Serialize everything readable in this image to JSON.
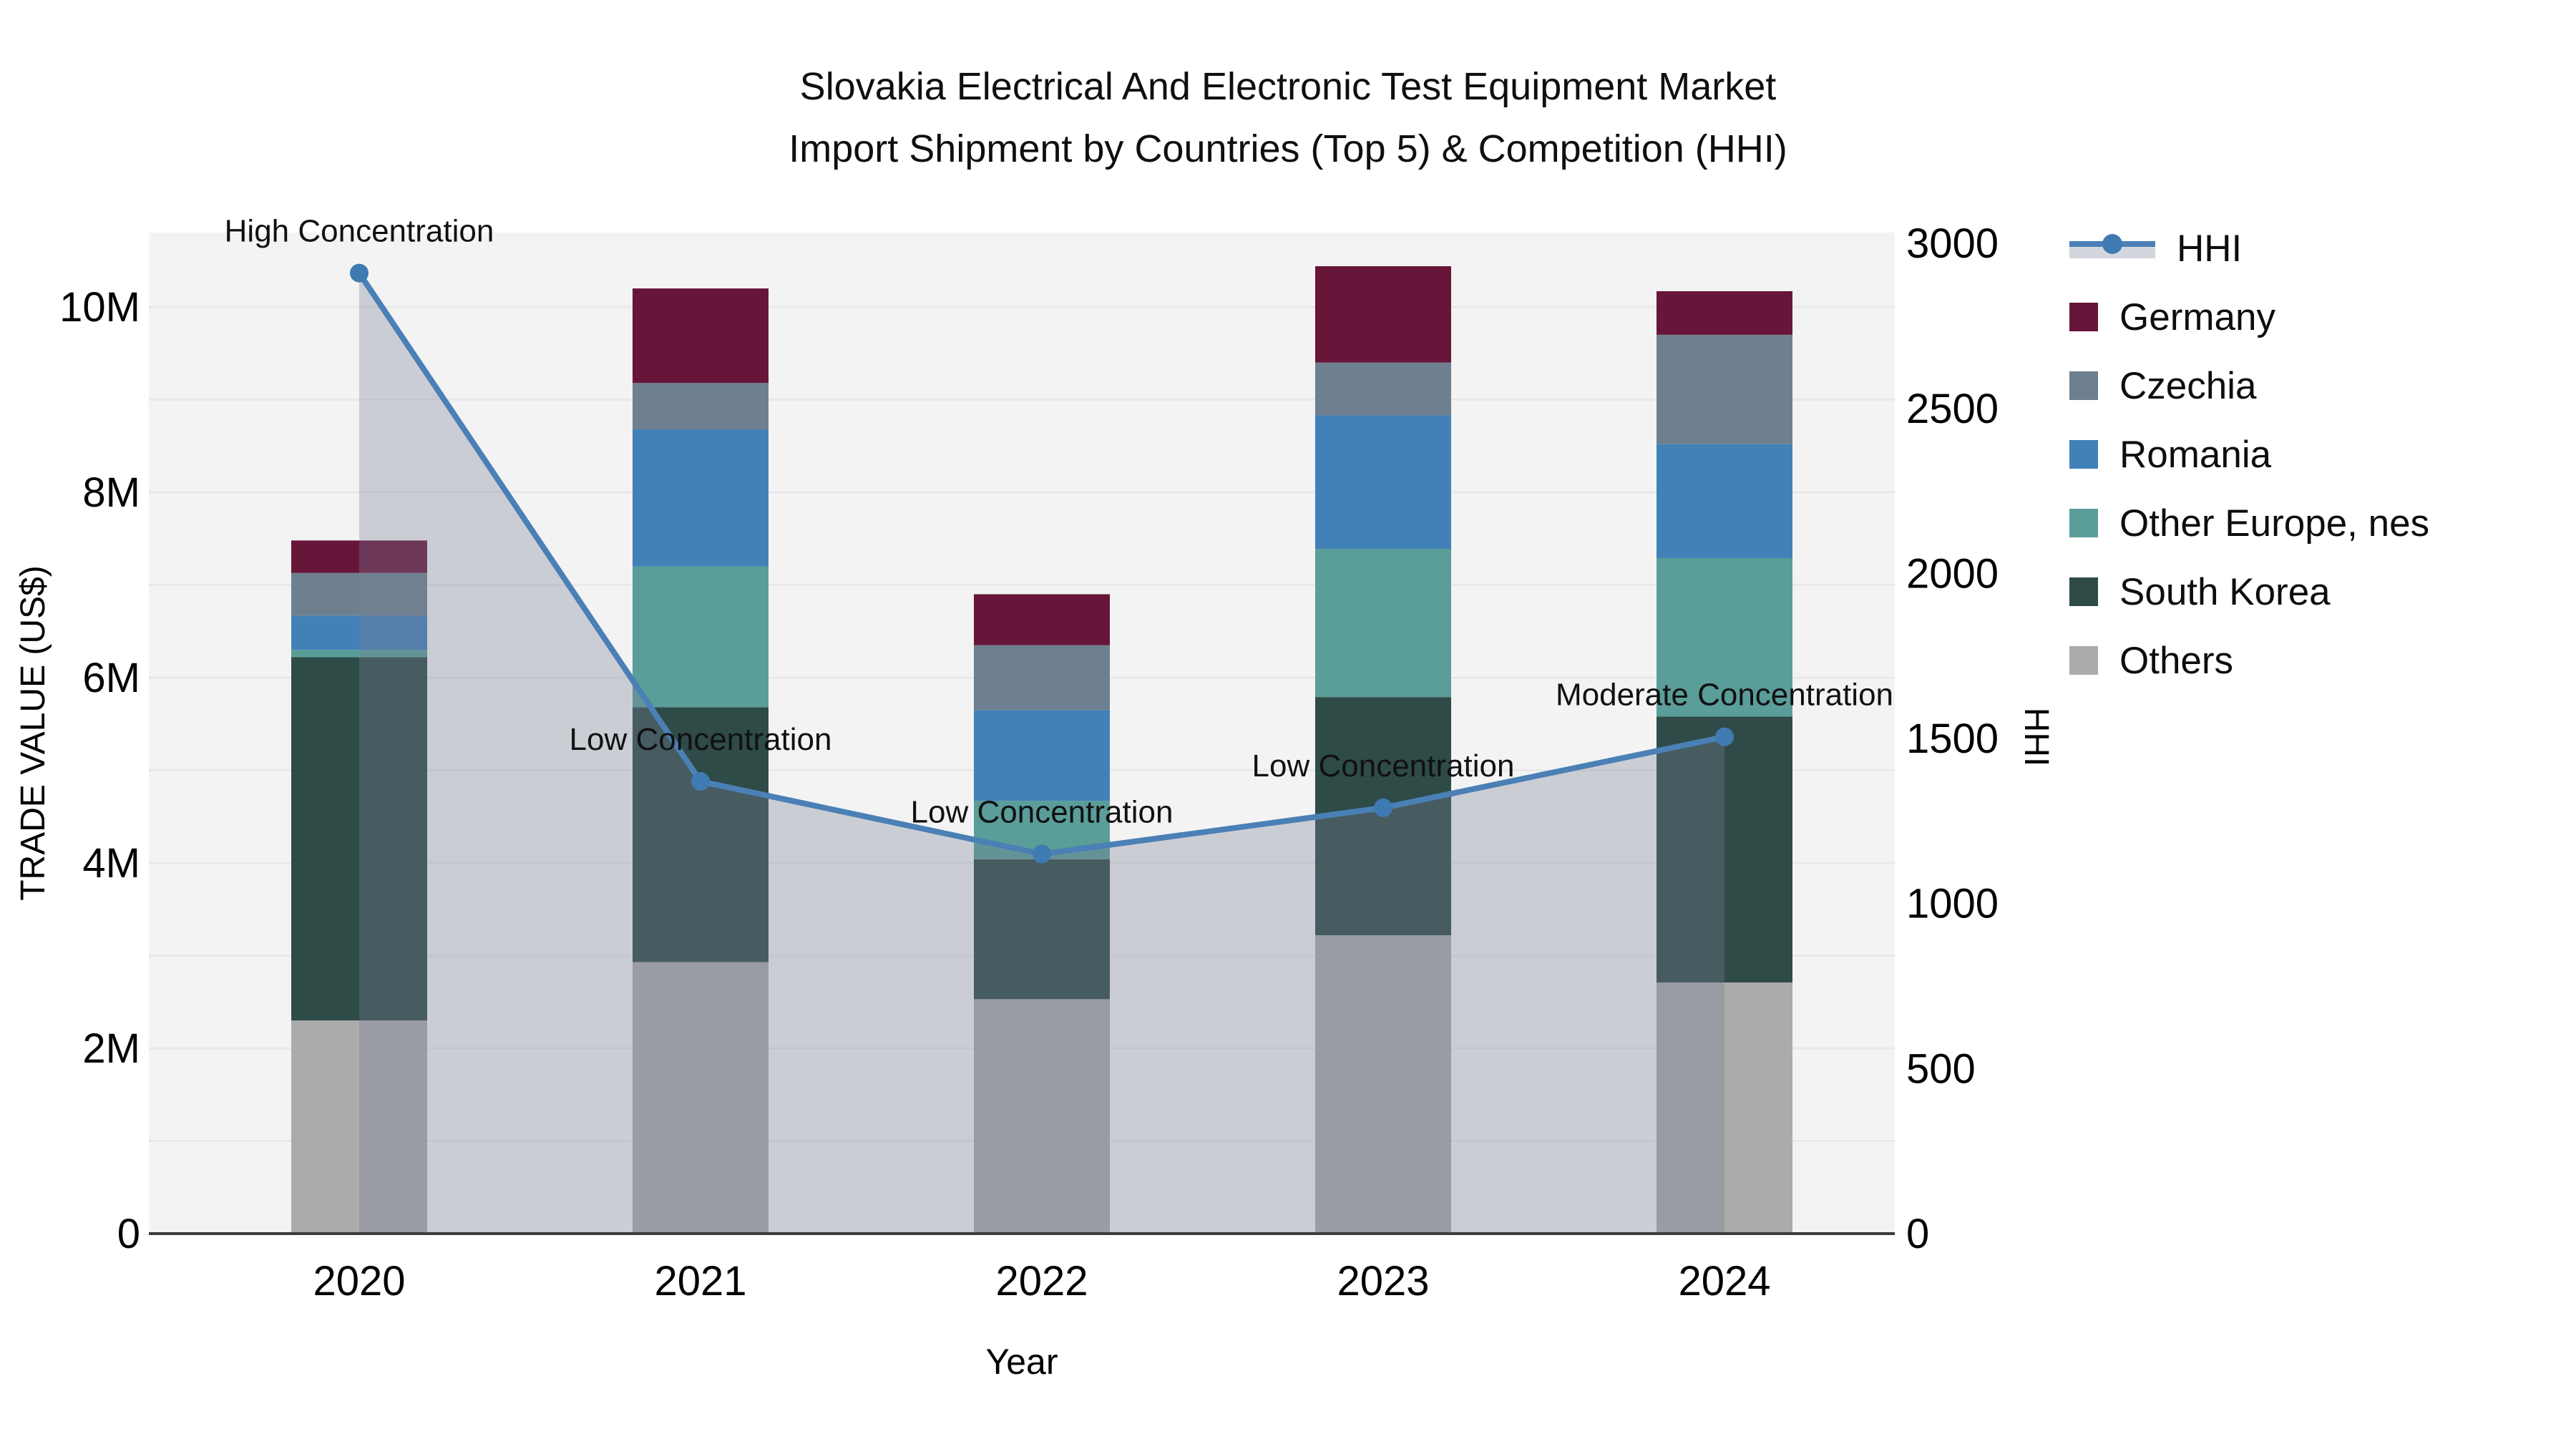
{
  "header": {
    "title_line1": "Slovakia Electrical And Electronic Test Equipment Market",
    "title_line2": "Import Shipment by Countries (Top 5) & Competition (HHI)"
  },
  "chart_data": {
    "type": "combo (stacked bar + line)",
    "title": "Slovakia Electrical And Electronic Test Equipment Market Import Shipment by Countries (Top 5) & Competition (HHI)",
    "categories": [
      "2020",
      "2021",
      "2022",
      "2023",
      "2024"
    ],
    "xlabel": "Year",
    "bar_unit": "M US$",
    "bar_series_bottom_to_top": [
      {
        "name": "Others",
        "color": "#ababab",
        "values": [
          2.3,
          2.93,
          2.53,
          3.22,
          2.71
        ]
      },
      {
        "name": "South Korea",
        "color": "#2e4b48",
        "values": [
          3.92,
          2.75,
          1.51,
          2.57,
          2.87
        ]
      },
      {
        "name": "Other Europe, nes",
        "color": "#5a9d99",
        "values": [
          0.08,
          1.52,
          0.63,
          1.6,
          1.71
        ]
      },
      {
        "name": "Romania",
        "color": "#4281b7",
        "values": [
          0.37,
          1.48,
          0.98,
          1.44,
          1.23
        ]
      },
      {
        "name": "Czechia",
        "color": "#6e808f",
        "values": [
          0.46,
          0.5,
          0.7,
          0.57,
          1.18
        ]
      },
      {
        "name": "Germany",
        "color": "#67163a",
        "values": [
          0.35,
          1.02,
          0.55,
          1.04,
          0.47
        ]
      }
    ],
    "bar_totals": [
      7.48,
      10.2,
      6.9,
      10.44,
      10.17
    ],
    "line_series": {
      "name": "HHI",
      "color": "#4a80b5",
      "area_fill": "rgba(120,128,150,0.33)",
      "values": [
        2910,
        1370,
        1150,
        1290,
        1505
      ],
      "annotations": [
        "High Concentration",
        "Low Concentration",
        "Low Concentration",
        "Low Concentration",
        "Moderate Concentration"
      ]
    },
    "y_left": {
      "label": "TRADE VALUE (US$)",
      "ticks": [
        "0",
        "2M",
        "4M",
        "6M",
        "8M",
        "10M"
      ],
      "tick_values": [
        0,
        2,
        4,
        6,
        8,
        10
      ],
      "max": 10,
      "grid": true
    },
    "y_right": {
      "label": "HHI",
      "ticks": [
        "0",
        "500",
        "1000",
        "1500",
        "2000",
        "2500",
        "3000"
      ],
      "tick_values": [
        0,
        500,
        1000,
        1500,
        2000,
        2500,
        3000
      ],
      "max": 3000
    },
    "legend_position": "right",
    "legend": [
      {
        "label": "HHI",
        "type": "line",
        "color": "#4a80b5"
      },
      {
        "label": "Germany",
        "type": "patch",
        "color": "#67163a"
      },
      {
        "label": "Czechia",
        "type": "patch",
        "color": "#6e808f"
      },
      {
        "label": "Romania",
        "type": "patch",
        "color": "#4281b7"
      },
      {
        "label": "Other Europe, nes",
        "type": "patch",
        "color": "#5a9d99"
      },
      {
        "label": "South Korea",
        "type": "patch",
        "color": "#2e4b48"
      },
      {
        "label": "Others",
        "type": "patch",
        "color": "#ababab"
      }
    ]
  }
}
